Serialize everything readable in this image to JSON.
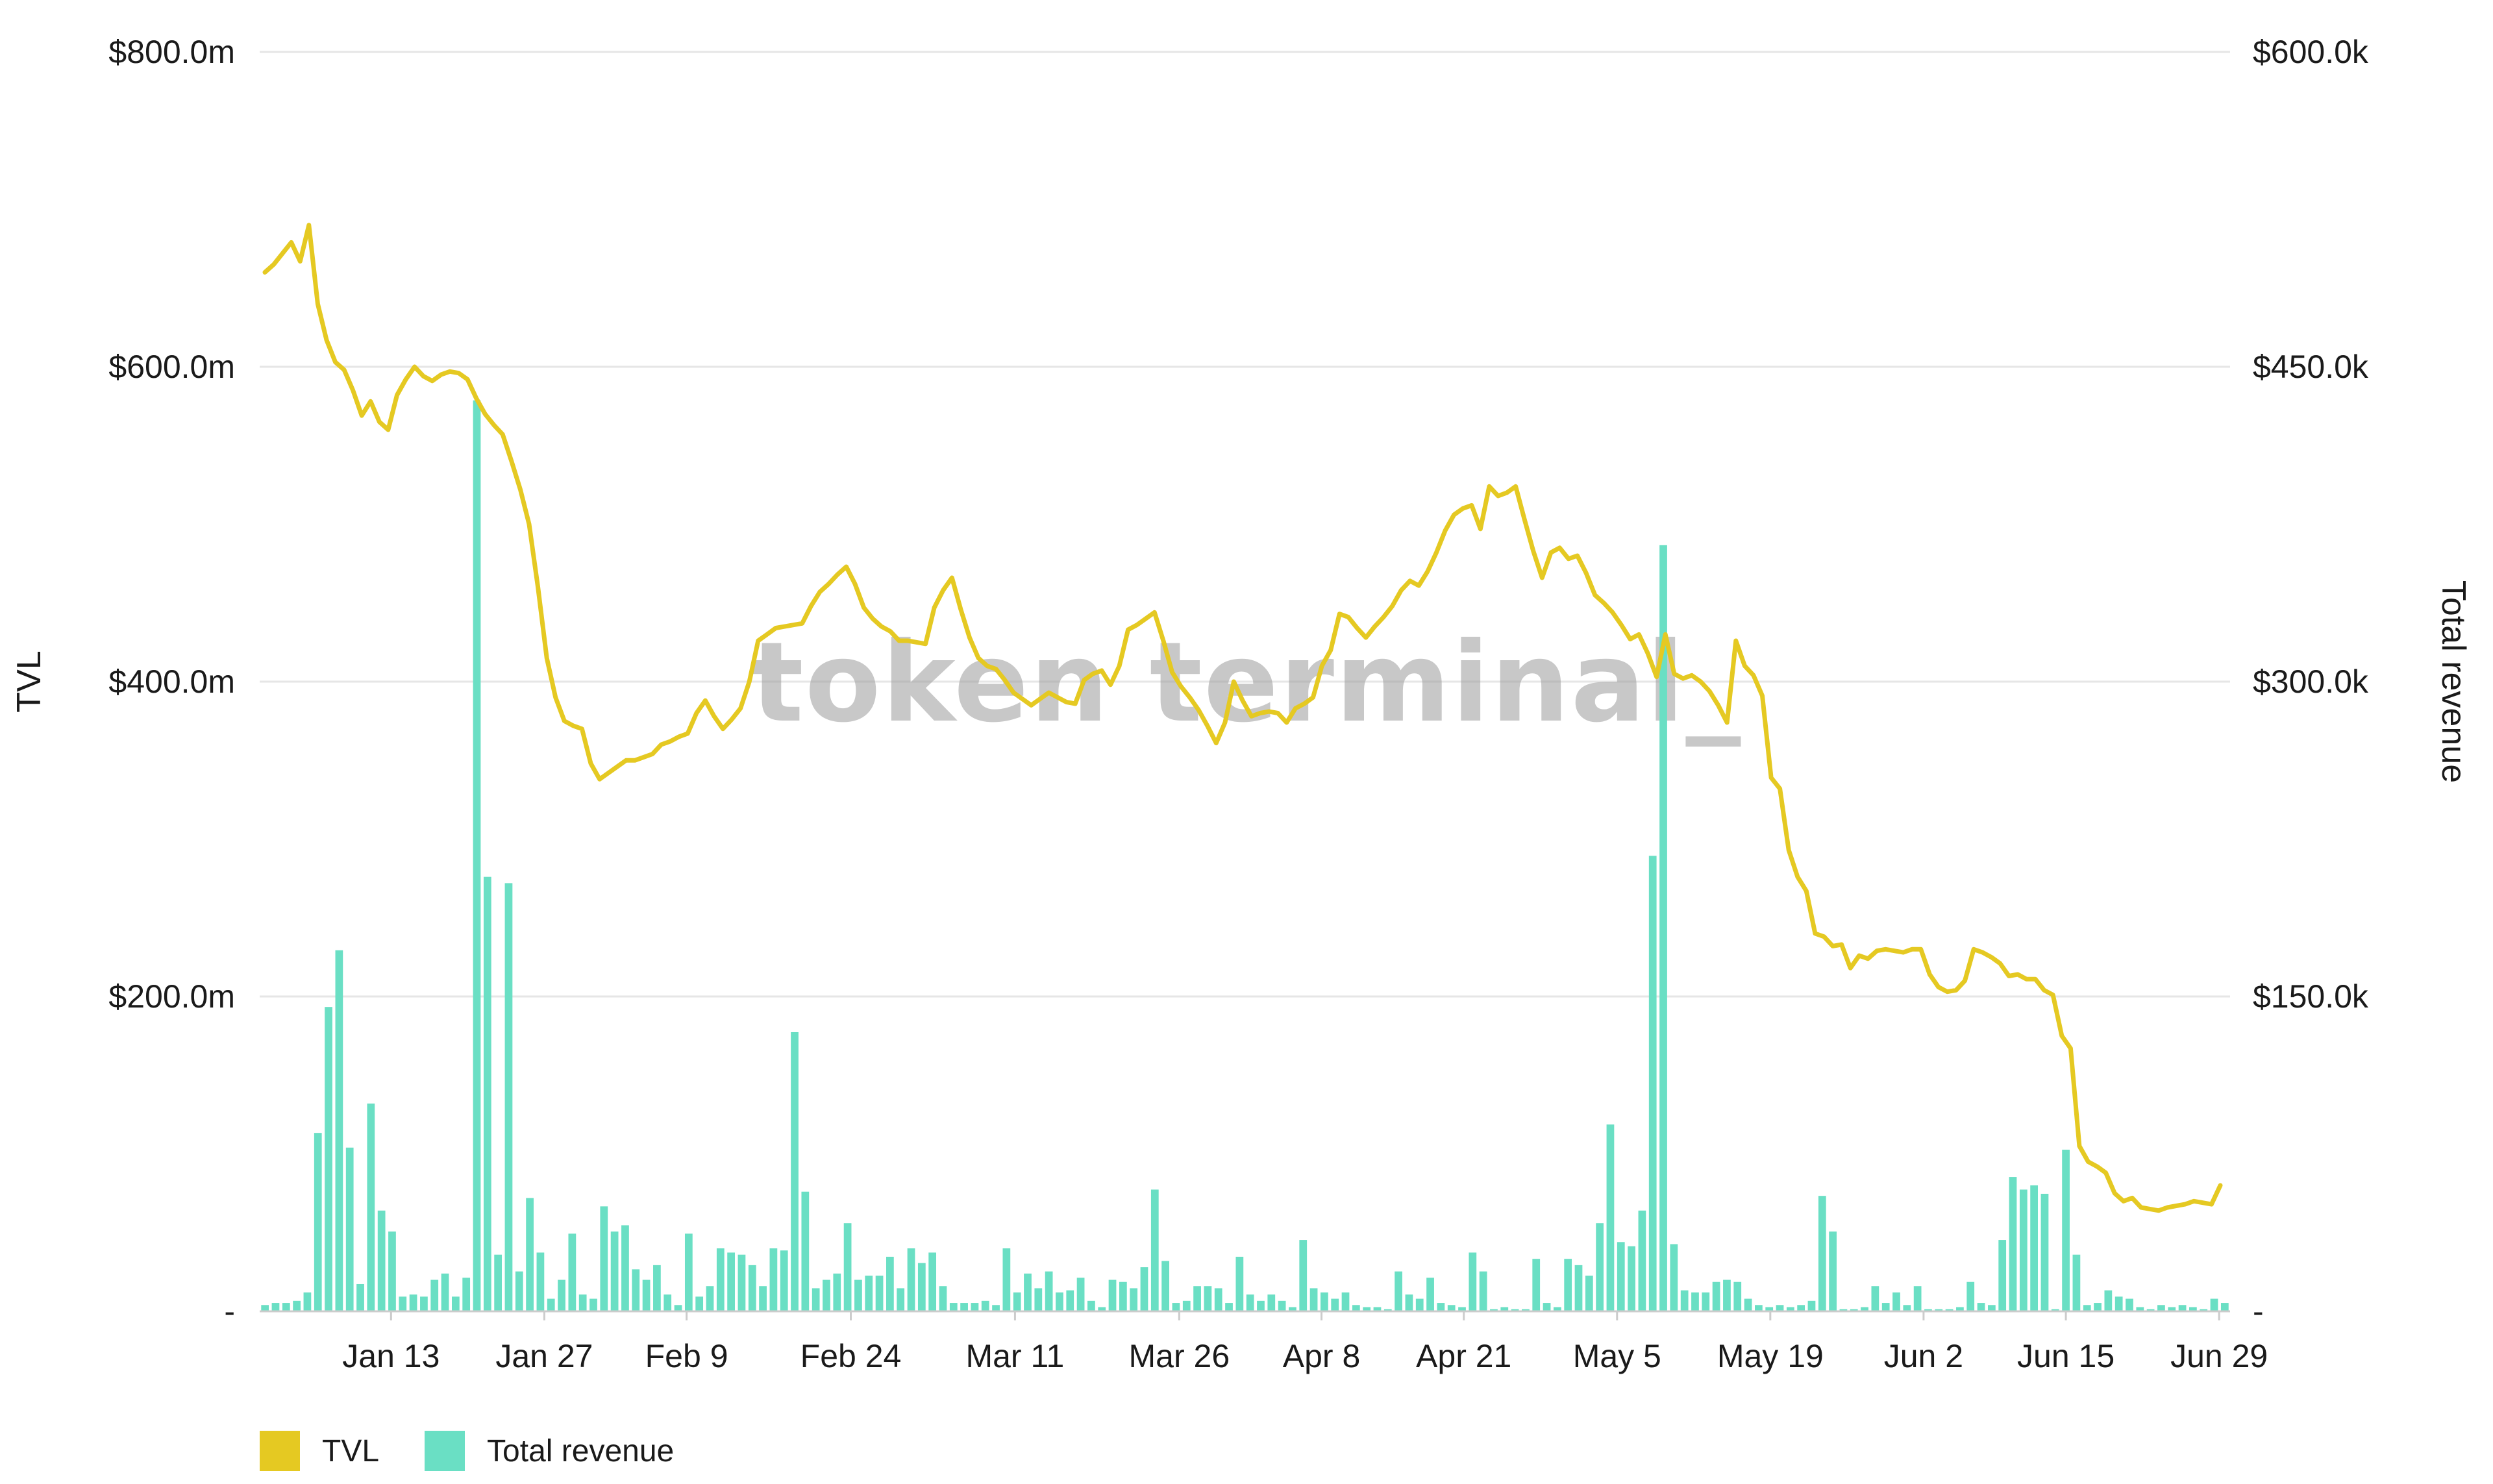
{
  "chart_data": {
    "type": "bar+line",
    "watermark": "token terminal_",
    "left_axis": {
      "title": "TVL",
      "ticks": [
        {
          "value": 0,
          "label": "-"
        },
        {
          "value": 200,
          "label": "$200.0m"
        },
        {
          "value": 400,
          "label": "$400.0m"
        },
        {
          "value": 600,
          "label": "$600.0m"
        },
        {
          "value": 800,
          "label": "$800.0m"
        }
      ],
      "range": [
        0,
        800
      ],
      "unit": "millions USD"
    },
    "right_axis": {
      "title": "Total revenue",
      "ticks": [
        {
          "value": 0,
          "label": "-"
        },
        {
          "value": 150,
          "label": "$150.0k"
        },
        {
          "value": 300,
          "label": "$300.0k"
        },
        {
          "value": 450,
          "label": "$450.0k"
        },
        {
          "value": 600,
          "label": "$600.0k"
        }
      ],
      "range": [
        0,
        600
      ],
      "unit": "thousands USD"
    },
    "x_ticks": [
      {
        "label": "Jan 13",
        "day": 12
      },
      {
        "label": "Jan 27",
        "day": 26
      },
      {
        "label": "Feb 9",
        "day": 39
      },
      {
        "label": "Feb 24",
        "day": 54
      },
      {
        "label": "Mar 11",
        "day": 69
      },
      {
        "label": "Mar 26",
        "day": 84
      },
      {
        "label": "Apr 8",
        "day": 97
      },
      {
        "label": "Apr 21",
        "day": 110
      },
      {
        "label": "May 5",
        "day": 124
      },
      {
        "label": "May 19",
        "day": 138
      },
      {
        "label": "Jun 2",
        "day": 152
      },
      {
        "label": "Jun 15",
        "day": 165
      },
      {
        "label": "Jun 29",
        "day": 179
      }
    ],
    "x_range_days": [
      0,
      180
    ],
    "series": [
      {
        "name": "TVL",
        "type": "line",
        "axis": "left",
        "color": "#E5C922",
        "values": [
          660,
          665,
          672,
          679,
          667,
          690,
          640,
          617,
          603,
          598,
          585,
          569,
          578,
          565,
          560,
          582,
          592,
          600,
          594,
          591,
          595,
          597,
          596,
          592,
          580,
          570,
          563,
          557,
          540,
          522,
          500,
          460,
          415,
          390,
          375,
          372,
          370,
          348,
          338,
          342,
          346,
          350,
          350,
          352,
          354,
          360,
          362,
          365,
          367,
          380,
          388,
          378,
          370,
          376,
          383,
          400,
          426,
          430,
          434,
          435,
          436,
          437,
          448,
          457,
          462,
          468,
          473,
          462,
          447,
          440,
          435,
          432,
          426,
          426,
          425,
          424,
          447,
          458,
          466,
          446,
          428,
          415,
          410,
          408,
          401,
          393,
          389,
          385,
          389,
          393,
          390,
          387,
          386,
          401,
          405,
          407,
          398,
          410,
          433,
          436,
          440,
          444,
          426,
          406,
          397,
          390,
          382,
          372,
          361,
          374,
          400,
          388,
          378,
          380,
          381,
          380,
          374,
          383,
          386,
          390,
          410,
          420,
          443,
          441,
          434,
          428,
          435,
          441,
          448,
          458,
          464,
          461,
          470,
          482,
          496,
          506,
          510,
          512,
          497,
          524,
          518,
          520,
          524,
          503,
          483,
          466,
          482,
          485,
          478,
          480,
          469,
          455,
          450,
          444,
          436,
          427,
          430,
          418,
          403,
          430,
          405,
          402,
          404,
          400,
          394,
          385,
          374,
          426,
          410,
          404,
          391,
          339,
          332,
          293,
          276,
          267,
          240,
          238,
          232,
          233,
          218,
          226,
          224,
          229,
          230,
          229,
          228,
          230,
          230,
          214,
          206,
          203,
          204,
          210,
          230,
          228,
          225,
          221,
          213,
          214,
          211,
          211,
          204,
          201,
          175,
          167,
          105,
          95,
          92,
          88,
          75,
          70,
          72,
          66,
          65,
          64,
          66,
          67,
          68,
          70,
          69,
          68,
          80
        ]
      },
      {
        "name": "Total revenue",
        "type": "bar",
        "axis": "right",
        "color": "#6ADFC4",
        "values": [
          3,
          4,
          4,
          5,
          9,
          85,
          145,
          172,
          78,
          13,
          99,
          48,
          38,
          7,
          8,
          7,
          15,
          18,
          7,
          16,
          434,
          207,
          27,
          204,
          19,
          54,
          28,
          6,
          15,
          37,
          8,
          6,
          50,
          38,
          41,
          20,
          15,
          22,
          8,
          3,
          37,
          7,
          12,
          30,
          28,
          27,
          22,
          12,
          30,
          29,
          133,
          57,
          11,
          15,
          18,
          42,
          15,
          17,
          17,
          26,
          11,
          30,
          23,
          28,
          12,
          4,
          4,
          4,
          5,
          3,
          30,
          9,
          18,
          11,
          19,
          9,
          10,
          16,
          5,
          2,
          15,
          14,
          11,
          21,
          58,
          24,
          4,
          5,
          12,
          12,
          11,
          4,
          26,
          8,
          5,
          8,
          5,
          2,
          34,
          11,
          9,
          6,
          9,
          3,
          2,
          2,
          1,
          19,
          8,
          6,
          16,
          4,
          3,
          2,
          28,
          19,
          1,
          2,
          1,
          1,
          25,
          4,
          2,
          25,
          22,
          17,
          42,
          89,
          33,
          31,
          48,
          217,
          365,
          32,
          10,
          9,
          9,
          14,
          15,
          14,
          6,
          3,
          2,
          3,
          2,
          3,
          5,
          55,
          38,
          1,
          1,
          2,
          12,
          4,
          9,
          3,
          12,
          1,
          1,
          1,
          2,
          14,
          4,
          3,
          34,
          64,
          58,
          60,
          56,
          1,
          77,
          27,
          3,
          4,
          10,
          7,
          6,
          2,
          1,
          3,
          2,
          3,
          2,
          1,
          6,
          4
        ]
      }
    ],
    "legend": [
      {
        "label": "TVL",
        "color": "#E5C922"
      },
      {
        "label": "Total revenue",
        "color": "#6ADFC4"
      }
    ],
    "grid": true,
    "legend_position": "bottom-left"
  }
}
